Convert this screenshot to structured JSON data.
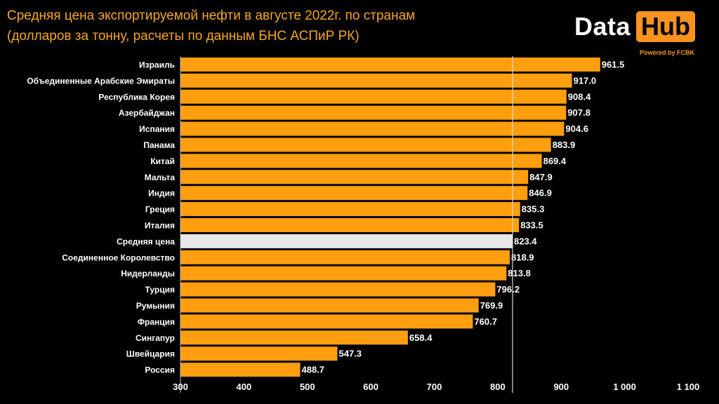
{
  "header": {
    "title_line1": "Средняя цена экспортируемой нефти в августе 2022г. по странам",
    "title_line2": "(долларов за тонну, расчеты по данным БНС АСПиР РК)"
  },
  "logo": {
    "word1": "Data",
    "word2": "Hub",
    "powered": "Powered by FCBK"
  },
  "colors": {
    "bar": "#ff9f0f",
    "highlight_bar": "#e8e8e8",
    "title": "#f5a623",
    "background": "#000000"
  },
  "chart_data": {
    "type": "bar",
    "orientation": "horizontal",
    "title": "Средняя цена экспортируемой нефти в августе 2022г. по странам",
    "subtitle": "(долларов за тонну, расчеты по данным БНС АСПиР РК)",
    "categories": [
      "Израиль",
      "Объединенные Арабские Эмираты",
      "Республика Корея",
      "Азербайджан",
      "Испания",
      "Панама",
      "Китай",
      "Мальта",
      "Индия",
      "Греция",
      "Италия",
      "Средняя цена",
      "Соединенное Королевство",
      "Нидерланды",
      "Турция",
      "Румыния",
      "Франция",
      "Сингапур",
      "Швейцария",
      "Россия"
    ],
    "values": [
      961.5,
      917.0,
      908.4,
      907.8,
      904.6,
      883.9,
      869.4,
      847.9,
      846.9,
      835.3,
      833.5,
      823.4,
      818.9,
      813.8,
      796.2,
      769.9,
      760.7,
      658.4,
      547.3,
      488.7
    ],
    "value_labels": [
      "961.5",
      "917.0",
      "908.4",
      "907.8",
      "904.6",
      "883.9",
      "869.4",
      "847.9",
      "846.9",
      "835.3",
      "833.5",
      "823.4",
      "818.9",
      "813.8",
      "796.2",
      "769.9",
      "760.7",
      "658.4",
      "547.3",
      "488.7"
    ],
    "highlight_category": "Средняя цена",
    "reference_line": 823.4,
    "xlim": [
      300,
      1100
    ],
    "ticks": [
      300,
      400,
      500,
      600,
      700,
      800,
      900,
      1000,
      1100
    ],
    "tick_labels": [
      "300",
      "400",
      "500",
      "600",
      "700",
      "800",
      "900",
      "1 000",
      "1 100"
    ],
    "xlabel": "",
    "ylabel": "",
    "grid": false,
    "legend": "none"
  }
}
